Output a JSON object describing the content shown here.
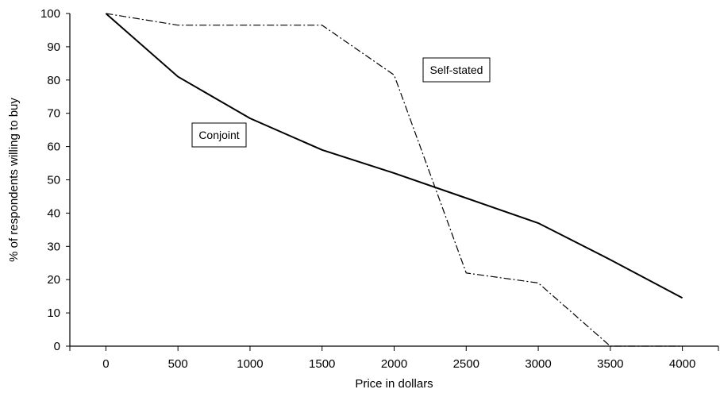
{
  "chart_data": {
    "type": "line",
    "xlabel": "Price in dollars",
    "ylabel": "% of respondents willing to buy",
    "xlim": [
      -250,
      4250
    ],
    "ylim": [
      0,
      100
    ],
    "x_ticks": [
      "0",
      "500",
      "1000",
      "1500",
      "2000",
      "2500",
      "3000",
      "3500",
      "4000"
    ],
    "y_ticks": [
      "0",
      "10",
      "20",
      "30",
      "40",
      "50",
      "60",
      "70",
      "80",
      "90",
      "100"
    ],
    "grid": false,
    "legend": "none",
    "series": [
      {
        "name": "Conjoint",
        "style": "solid",
        "color": "#000000",
        "x": [
          0,
          500,
          1000,
          1500,
          2000,
          2500,
          3000,
          3500,
          4000
        ],
        "values": [
          100,
          81,
          68.5,
          59,
          52,
          44.5,
          37,
          26,
          14.5
        ]
      },
      {
        "name": "Self-stated",
        "style": "dash-dot",
        "color": "#000000",
        "x": [
          0,
          500,
          1000,
          1500,
          2000,
          2500,
          3000,
          3500,
          4000
        ],
        "values": [
          100,
          96.5,
          96.5,
          96.5,
          81.5,
          22,
          19,
          0,
          0
        ]
      }
    ],
    "annotations": [
      {
        "text": "Conjoint",
        "series": 0
      },
      {
        "text": "Self-stated",
        "series": 1
      }
    ]
  }
}
